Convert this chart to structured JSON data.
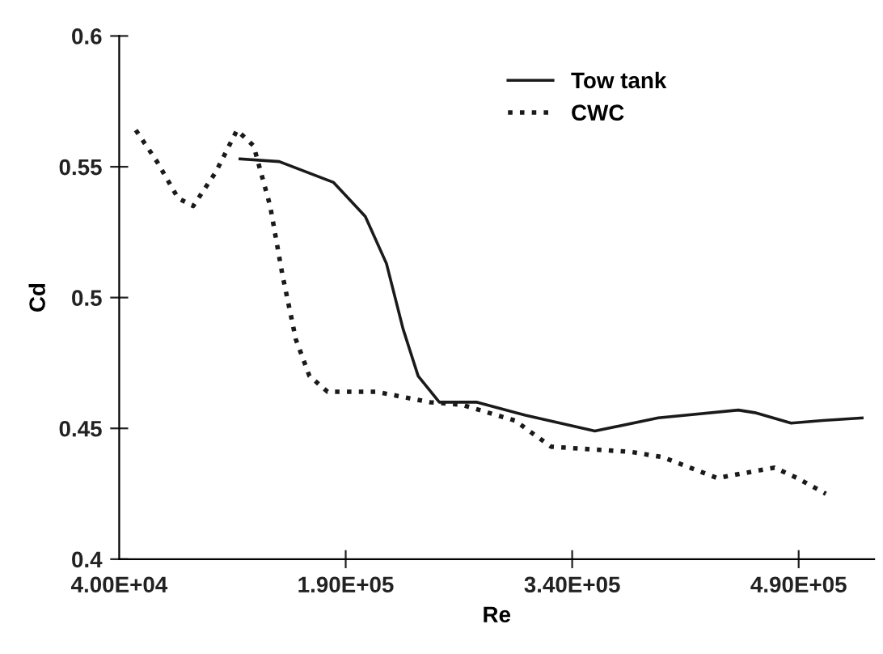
{
  "chart_data": {
    "type": "line",
    "xlabel": "Re",
    "ylabel": "Cd",
    "xlim": [
      40000,
      540000
    ],
    "xticks": [
      {
        "value": 40000,
        "label": "4.00E+04"
      },
      {
        "value": 190000,
        "label": "1.90E+05"
      },
      {
        "value": 340000,
        "label": "3.40E+05"
      },
      {
        "value": 490000,
        "label": "4.90E+05"
      }
    ],
    "ylim": [
      0.4,
      0.6
    ],
    "yticks": [
      0.4,
      0.45,
      0.5,
      0.55,
      0.6
    ],
    "grid": false,
    "legend": "top",
    "marker": "none",
    "series": [
      {
        "name": "Tow tank",
        "color": "#1a1a1a",
        "line_style": "solid",
        "x": [
          120000,
          146000,
          182000,
          203000,
          217000,
          228000,
          238000,
          252000,
          277000,
          309000,
          355000,
          397000,
          450000,
          461000,
          485000,
          506000,
          532000
        ],
        "values": [
          0.553,
          0.552,
          0.544,
          0.531,
          0.513,
          0.488,
          0.47,
          0.46,
          0.46,
          0.455,
          0.449,
          0.454,
          0.457,
          0.456,
          0.452,
          0.453,
          0.454
        ]
      },
      {
        "name": "CWC",
        "color": "#1a1a1a",
        "line_style": "dotted",
        "x": [
          51000,
          65000,
          79000,
          89000,
          104000,
          118000,
          129000,
          140000,
          148000,
          157000,
          166000,
          178000,
          210000,
          246000,
          267000,
          302000,
          326000,
          379000,
          400000,
          436000,
          474000,
          489000,
          508000
        ],
        "values": [
          0.564,
          0.552,
          0.538,
          0.535,
          0.548,
          0.564,
          0.558,
          0.535,
          0.509,
          0.484,
          0.47,
          0.464,
          0.464,
          0.46,
          0.459,
          0.453,
          0.443,
          0.441,
          0.439,
          0.431,
          0.435,
          0.431,
          0.425
        ]
      }
    ]
  }
}
